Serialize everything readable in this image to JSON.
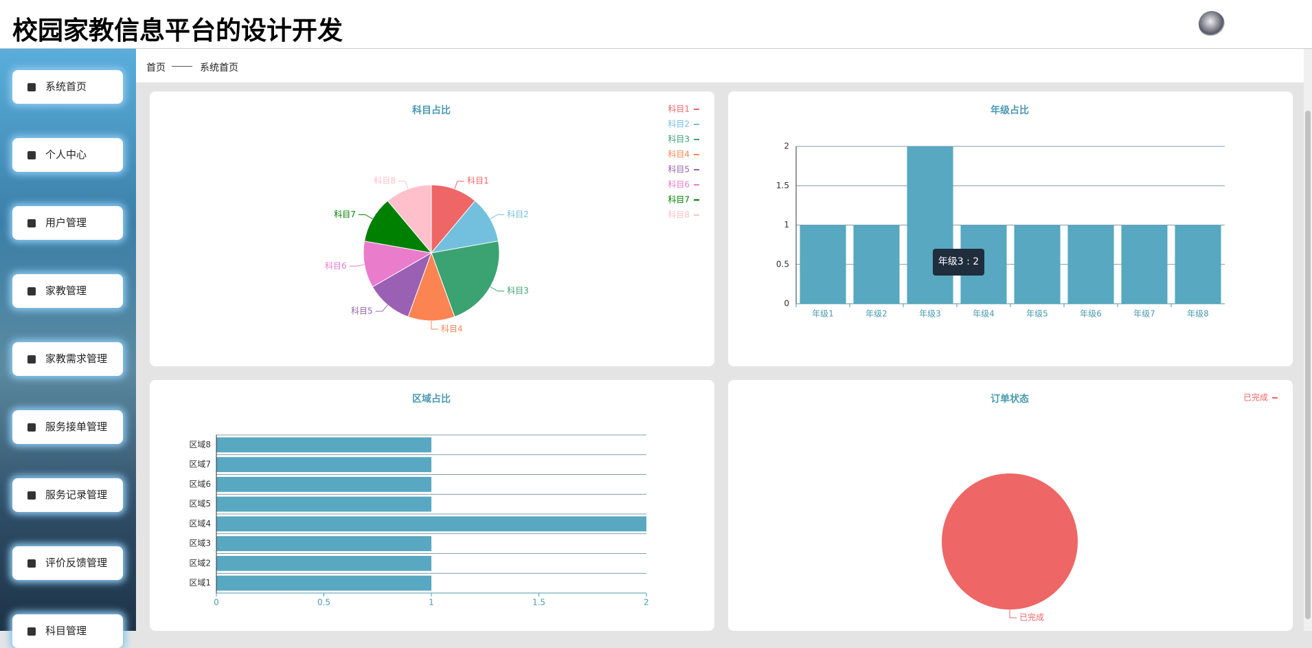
{
  "header": {
    "title": "校园家教信息平台的设计开发"
  },
  "menu": [
    "系统首页",
    "个人中心",
    "用户管理",
    "家教管理",
    "家教需求管理",
    "服务接单管理",
    "服务记录管理",
    "评价反馈管理",
    "科目管理"
  ],
  "breadcrumb": [
    "首页",
    "系统首页"
  ],
  "tooltip": "年级3 : 2",
  "chart_data": [
    {
      "type": "pie",
      "title": "科目占比",
      "categories": [
        "科目1",
        "科目2",
        "科目3",
        "科目4",
        "科目5",
        "科目6",
        "科目7",
        "科目8"
      ],
      "values": [
        1,
        1,
        2,
        1,
        1,
        1,
        1,
        1
      ],
      "colors": [
        "#ee6666",
        "#73c0de",
        "#3ba272",
        "#fc8452",
        "#9a60b4",
        "#ea7ccc",
        "#008000",
        "#ffc0cb"
      ]
    },
    {
      "type": "bar",
      "title": "年级占比",
      "categories": [
        "年级1",
        "年级2",
        "年级3",
        "年级4",
        "年级5",
        "年级6",
        "年级7",
        "年级8"
      ],
      "values": [
        1,
        1,
        2,
        1,
        1,
        1,
        1,
        1
      ],
      "color": "#57a8c0",
      "ylim": [
        0,
        2
      ],
      "yticks": [
        0,
        0.5,
        1,
        1.5,
        2
      ],
      "grid": true
    },
    {
      "type": "hbar",
      "title": "区域占比",
      "categories": [
        "区域1",
        "区域2",
        "区域3",
        "区域4",
        "区域5",
        "区域6",
        "区域7",
        "区域8"
      ],
      "values": [
        1,
        1,
        1,
        2,
        1,
        1,
        1,
        1
      ],
      "color": "#57a8c0",
      "xlim": [
        0,
        2
      ],
      "xticks": [
        0,
        0.5,
        1,
        1.5,
        2
      ]
    },
    {
      "type": "pie",
      "title": "订单状态",
      "categories": [
        "已完成"
      ],
      "values": [
        1
      ],
      "colors": [
        "#ee6666"
      ]
    }
  ]
}
